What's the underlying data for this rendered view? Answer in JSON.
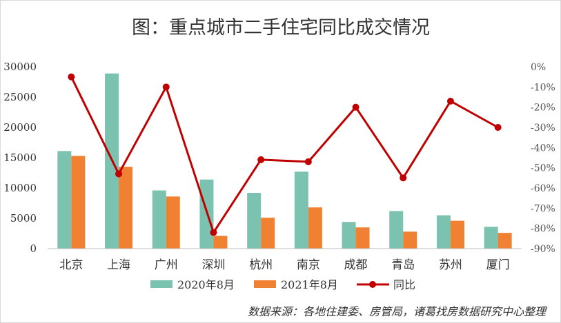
{
  "chart_data": {
    "type": "bar",
    "title": "图：重点城市二手住宅同比成交情况",
    "categories": [
      "北京",
      "上海",
      "广州",
      "深圳",
      "杭州",
      "南京",
      "成都",
      "青岛",
      "苏州",
      "厦门"
    ],
    "series": [
      {
        "name": "2020年8月",
        "kind": "bar",
        "axis": "left",
        "color": "#7cc2b0",
        "values": [
          16100,
          28900,
          9600,
          11400,
          9200,
          12700,
          4400,
          6200,
          5500,
          3600
        ]
      },
      {
        "name": "2021年8月",
        "kind": "bar",
        "axis": "left",
        "color": "#f08132",
        "values": [
          15300,
          13500,
          8600,
          2100,
          5100,
          6800,
          3500,
          2800,
          4600,
          2600
        ]
      },
      {
        "name": "同比",
        "kind": "line",
        "axis": "right",
        "color": "#c00000",
        "values": [
          -5,
          -53,
          -10,
          -82,
          -46,
          -47,
          -20,
          -55,
          -17,
          -30
        ]
      }
    ],
    "yAxisLeft": {
      "min": 0,
      "max": 30000,
      "step": 5000,
      "ticks": [
        "0",
        "5000",
        "10000",
        "15000",
        "20000",
        "25000",
        "30000"
      ]
    },
    "yAxisRight": {
      "min": -90,
      "max": 0,
      "step": 10,
      "ticks": [
        "0%",
        "-10%",
        "-20%",
        "-30%",
        "-40%",
        "-50%",
        "-60%",
        "-70%",
        "-80%",
        "-90%"
      ]
    },
    "grid": false,
    "legend": "bottom"
  },
  "source": "数据来源：各地住建委、房管局，诸葛找房数据研究中心整理"
}
